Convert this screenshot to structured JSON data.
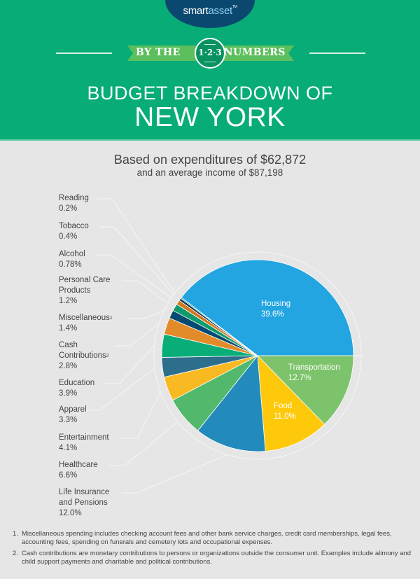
{
  "header": {
    "logo_smart": "smart",
    "logo_asset": "asset",
    "logo_tm": "TM",
    "ribbon_left": "BY THE",
    "ribbon_right": "NUMBERS",
    "badge": "1·2·3",
    "title_line1": "BUDGET BREAKDOWN OF",
    "title_line2": "NEW YORK",
    "colors": {
      "green": "#07ac77",
      "ribbon": "#5cbf5d",
      "navy": "#0a4870"
    }
  },
  "subtitle": {
    "line1": "Based on expenditures of $62,872",
    "line2": "and an average income of $87,198"
  },
  "chart_data": {
    "type": "pie",
    "title": "Budget Breakdown of New York",
    "subtitle": "Based on expenditures of $62,872 and an average income of $87,198",
    "start": "3 o'clock, clockwise",
    "slices": [
      {
        "name": "Transportation",
        "value": 12.7,
        "label": "12.7%",
        "color": "#7dc36b"
      },
      {
        "name": "Food",
        "value": 11.0,
        "label": "11.0%",
        "color": "#fdc90a"
      },
      {
        "name": "Life Insurance and Pensions",
        "value": 12.0,
        "label": "12.0%",
        "color": "#238bbb"
      },
      {
        "name": "Healthcare",
        "value": 6.6,
        "label": "6.6%",
        "color": "#52b96c"
      },
      {
        "name": "Entertainment",
        "value": 4.1,
        "label": "4.1%",
        "color": "#f8b922"
      },
      {
        "name": "Apparel",
        "value": 3.3,
        "label": "3.3%",
        "color": "#2d6e8c"
      },
      {
        "name": "Education",
        "value": 3.9,
        "label": "3.9%",
        "color": "#09ad77"
      },
      {
        "name": "Cash Contributions",
        "value": 2.8,
        "label": "2.8%",
        "color": "#e38b2a"
      },
      {
        "name": "Miscellaneous",
        "value": 1.4,
        "label": "1.4%",
        "color": "#054a70"
      },
      {
        "name": "Personal Care Products",
        "value": 1.2,
        "label": "1.2%",
        "color": "#0e9a6e"
      },
      {
        "name": "Alcohol",
        "value": 0.78,
        "label": "0.78%",
        "color": "#d4781f"
      },
      {
        "name": "Tobacco",
        "value": 0.4,
        "label": "0.4%",
        "color": "#03355a"
      },
      {
        "name": "Reading",
        "value": 0.2,
        "label": "0.2%",
        "color": "#0f9b8a"
      },
      {
        "name": "Housing",
        "value": 39.6,
        "label": "39.6%",
        "color": "#22a5e0"
      }
    ]
  },
  "inner_labels": {
    "housing": {
      "name": "Housing",
      "pct": "39.6%"
    },
    "transportation": {
      "name": "Transportation",
      "pct": "12.7%"
    },
    "food": {
      "name": "Food",
      "pct": "11.0%"
    }
  },
  "side_labels": [
    {
      "line1": "Reading",
      "line2": "",
      "pct": "0.2%",
      "sup": ""
    },
    {
      "line1": "Tobacco",
      "line2": "",
      "pct": "0.4%",
      "sup": ""
    },
    {
      "line1": "Alcohol",
      "line2": "",
      "pct": "0.78%",
      "sup": ""
    },
    {
      "line1": "Personal Care",
      "line2": "Products",
      "pct": "1.2%",
      "sup": ""
    },
    {
      "line1": "Miscellaneous",
      "line2": "",
      "pct": "1.4%",
      "sup": "1"
    },
    {
      "line1": "Cash",
      "line2": "Contributions",
      "pct": "2.8%",
      "sup": "2"
    },
    {
      "line1": "Education",
      "line2": "",
      "pct": "3.9%",
      "sup": ""
    },
    {
      "line1": "Apparel",
      "line2": "",
      "pct": "3.3%",
      "sup": ""
    },
    {
      "line1": "Entertainment",
      "line2": "",
      "pct": "4.1%",
      "sup": ""
    },
    {
      "line1": "Healthcare",
      "line2": "",
      "pct": "6.6%",
      "sup": ""
    },
    {
      "line1": "Life Insurance",
      "line2": "and Pensions",
      "pct": "12.0%",
      "sup": ""
    }
  ],
  "footnotes": [
    {
      "num": "1.",
      "text": "Miscellaneous spending includes checking account fees and other bank service charges, credit card memberships, legal fees, accounting fees, spending on funerals and cemetery lots and occupational expenses."
    },
    {
      "num": "2.",
      "text": "Cash contributions are monetary contributions to persons or organizations outside the consumer unit. Examples include alimony and child support payments and charitable and political contributions."
    }
  ]
}
